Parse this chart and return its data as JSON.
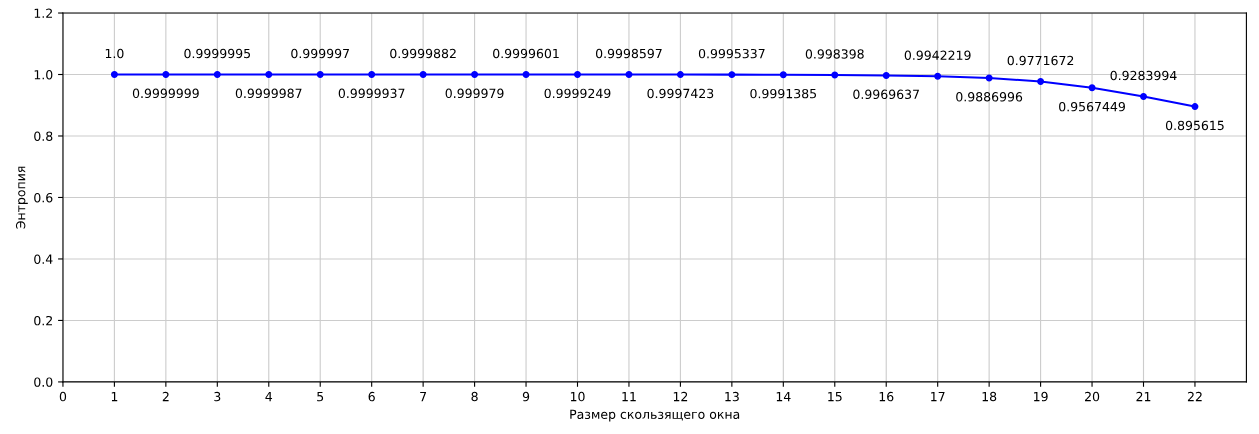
{
  "chart_data": {
    "type": "line",
    "xlabel": "Размер скользящего окна",
    "ylabel": "Энтропия",
    "x": [
      1,
      2,
      3,
      4,
      5,
      6,
      7,
      8,
      9,
      10,
      11,
      12,
      13,
      14,
      15,
      16,
      17,
      18,
      19,
      20,
      21,
      22
    ],
    "series": [
      {
        "color": "#0000ff",
        "values": [
          1.0,
          0.9999999,
          0.9999995,
          0.9999987,
          0.999997,
          0.9999937,
          0.9999882,
          0.999979,
          0.9999601,
          0.9999249,
          0.9998597,
          0.9997423,
          0.9995337,
          0.9991385,
          0.998398,
          0.9969637,
          0.9942219,
          0.9886996,
          0.9771672,
          0.9567449,
          0.9283994,
          0.895615
        ],
        "value_labels": [
          "1.0",
          "0.9999999",
          "0.9999995",
          "0.9999987",
          "0.999997",
          "0.9999937",
          "0.9999882",
          "0.999979",
          "0.9999601",
          "0.9999249",
          "0.9998597",
          "0.9997423",
          "0.9995337",
          "0.9991385",
          "0.998398",
          "0.9969637",
          "0.9942219",
          "0.9886996",
          "0.9771672",
          "0.9567449",
          "0.9283994",
          "0.895615"
        ]
      }
    ],
    "xlim": [
      0,
      23
    ],
    "xticks": [
      0,
      1,
      2,
      3,
      4,
      5,
      6,
      7,
      8,
      9,
      10,
      11,
      12,
      13,
      14,
      15,
      16,
      17,
      18,
      19,
      20,
      21,
      22
    ],
    "ylim": [
      0,
      1.2
    ],
    "yticks": [
      {
        "value": 0,
        "label": "0.0"
      },
      {
        "value": 0.2,
        "label": "0.2"
      },
      {
        "value": 0.4,
        "label": "0.4"
      },
      {
        "value": 0.6,
        "label": "0.6"
      },
      {
        "value": 0.8,
        "label": "0.8"
      },
      {
        "value": 1.0,
        "label": "1.0"
      },
      {
        "value": 1.2,
        "label": "1.2"
      }
    ],
    "grid": true,
    "marker": "circle",
    "line_style": "solid"
  }
}
